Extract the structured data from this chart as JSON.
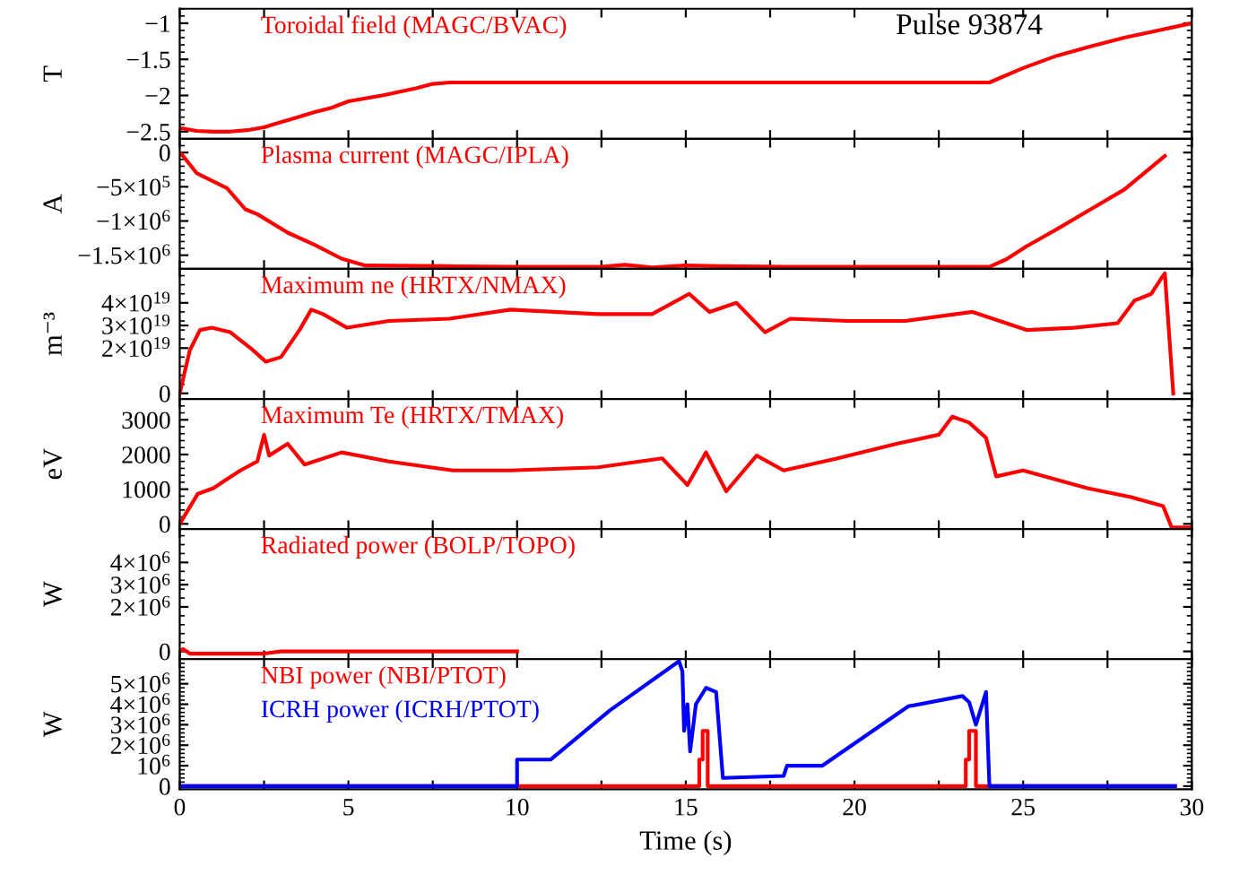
{
  "chart_data": [
    {
      "type": "line",
      "ylabel": "T",
      "annotations": [
        "Pulse 93874"
      ],
      "xlim": [
        0,
        30
      ],
      "xticks": [
        {
          "value": 0,
          "label": null
        },
        {
          "value": 2.5,
          "label": null
        },
        {
          "value": 5,
          "label": null
        },
        {
          "value": 7.5,
          "label": null
        },
        {
          "value": 10,
          "label": null
        },
        {
          "value": 12.5,
          "label": null
        },
        {
          "value": 15,
          "label": null
        },
        {
          "value": 17.5,
          "label": null
        },
        {
          "value": 20,
          "label": null
        },
        {
          "value": 22.5,
          "label": null
        },
        {
          "value": 25,
          "label": null
        },
        {
          "value": 27.5,
          "label": null
        },
        {
          "value": 30,
          "label": null
        }
      ],
      "ylim": [
        -2.6,
        -0.8
      ],
      "yticks": [
        {
          "value": -2.5,
          "label": "−2.5"
        },
        {
          "value": -2,
          "label": "−2"
        },
        {
          "value": -1.5,
          "label": "−1.5"
        },
        {
          "value": -1,
          "label": "−1"
        }
      ],
      "tick_labels": "y",
      "series": [
        {
          "name": "Toroidal field (MAGC/BVAC)",
          "color": "#ff0000",
          "x": [
            0,
            0.5,
            1,
            1.5,
            2,
            2.5,
            3,
            3.5,
            4,
            4.5,
            5,
            6,
            7,
            7.5,
            8,
            10,
            15,
            20,
            24,
            25,
            26,
            27,
            28,
            29,
            30
          ],
          "values": [
            -2.45,
            -2.49,
            -2.5,
            -2.5,
            -2.48,
            -2.44,
            -2.37,
            -2.3,
            -2.23,
            -2.17,
            -2.08,
            -2.0,
            -1.9,
            -1.84,
            -1.82,
            -1.82,
            -1.82,
            -1.82,
            -1.82,
            -1.62,
            -1.45,
            -1.32,
            -1.2,
            -1.1,
            -1.0
          ]
        }
      ]
    },
    {
      "type": "line",
      "ylabel": "A",
      "xlim": [
        0,
        30
      ],
      "xticks": [
        {
          "value": 0,
          "label": null
        },
        {
          "value": 2.5,
          "label": null
        },
        {
          "value": 5,
          "label": null
        },
        {
          "value": 7.5,
          "label": null
        },
        {
          "value": 10,
          "label": null
        },
        {
          "value": 12.5,
          "label": null
        },
        {
          "value": 15,
          "label": null
        },
        {
          "value": 17.5,
          "label": null
        },
        {
          "value": 20,
          "label": null
        },
        {
          "value": 22.5,
          "label": null
        },
        {
          "value": 25,
          "label": null
        },
        {
          "value": 27.5,
          "label": null
        },
        {
          "value": 30,
          "label": null
        }
      ],
      "ylim": [
        -1700000,
        200000
      ],
      "yticks": [
        {
          "value": -1500000,
          "label": "−1.5×10$^{6}$"
        },
        {
          "value": -1000000,
          "label": "−1×10$^{6}$"
        },
        {
          "value": -500000,
          "label": "−5×10$^{5}$"
        },
        0
      ],
      "tick_labels": "y",
      "series": [
        {
          "name": "Plasma current (MAGC/IPLA)",
          "color": "#ff0000",
          "x": [
            0,
            0.1,
            0.5,
            1.4,
            1.95,
            2.3,
            3.2,
            4.0,
            4.8,
            5.5,
            8,
            10,
            12.5,
            13.2,
            14,
            15,
            16,
            18,
            20,
            24,
            24.5,
            25.1,
            26,
            27,
            28,
            29.2
          ],
          "values": [
            0,
            -50000,
            -300000,
            -520000,
            -830000,
            -900000,
            -1170000,
            -1350000,
            -1550000,
            -1650000,
            -1660000,
            -1670000,
            -1670000,
            -1640000,
            -1680000,
            -1650000,
            -1660000,
            -1670000,
            -1670000,
            -1670000,
            -1560000,
            -1370000,
            -1120000,
            -830000,
            -540000,
            -50000
          ]
        }
      ]
    },
    {
      "type": "line",
      "ylabel": "m⁻³",
      "xlim": [
        0,
        30
      ],
      "xticks": [
        {
          "value": 0,
          "label": null
        },
        {
          "value": 2.5,
          "label": null
        },
        {
          "value": 5,
          "label": null
        },
        {
          "value": 7.5,
          "label": null
        },
        {
          "value": 10,
          "label": null
        },
        {
          "value": 12.5,
          "label": null
        },
        {
          "value": 15,
          "label": null
        },
        {
          "value": 17.5,
          "label": null
        },
        {
          "value": 20,
          "label": null
        },
        {
          "value": 22.5,
          "label": null
        },
        {
          "value": 25,
          "label": null
        },
        {
          "value": 27.5,
          "label": null
        },
        {
          "value": 30,
          "label": null
        }
      ],
      "ylim": [
        -2.5e+18,
        5.5e+19
      ],
      "yticks": [
        0,
        {
          "value": 2e+19,
          "label": "2×10$^{19}$"
        },
        {
          "value": 3e+19,
          "label": "3×10$^{19}$"
        },
        {
          "value": 4e+19,
          "label": "4×10$^{19}$"
        }
      ],
      "tick_labels": "y",
      "series": [
        {
          "name": "Maximum ne (HRTX/NMAX)",
          "color": "#ff0000",
          "x": [
            0,
            0.3,
            0.6,
            0.95,
            1.5,
            2.1,
            2.55,
            3.0,
            3.55,
            3.9,
            4.25,
            4.96,
            6.2,
            8.0,
            9.8,
            12.4,
            14.0,
            15.1,
            15.7,
            16.5,
            17.35,
            18.1,
            19.8,
            21.5,
            23.5,
            25.1,
            26.5,
            27.8,
            28.3,
            28.8,
            29.1,
            29.2,
            29.45
          ],
          "values": [
            0,
            1.9e+19,
            2.8e+19,
            2.9e+19,
            2.7e+19,
            2e+19,
            1.4e+19,
            1.6e+19,
            2.8e+19,
            3.7e+19,
            3.5e+19,
            2.9e+19,
            3.2e+19,
            3.3e+19,
            3.7e+19,
            3.5e+19,
            3.5e+19,
            4.4e+19,
            3.6e+19,
            4e+19,
            2.7e+19,
            3.3e+19,
            3.2e+19,
            3.2e+19,
            3.6e+19,
            2.8e+19,
            2.9e+19,
            3.1e+19,
            4.1e+19,
            4.4e+19,
            5.1e+19,
            5.3e+19,
            0
          ]
        }
      ]
    },
    {
      "type": "line",
      "ylabel": "eV",
      "xlim": [
        0,
        30
      ],
      "xticks": [
        {
          "value": 0,
          "label": null
        },
        {
          "value": 2.5,
          "label": null
        },
        {
          "value": 5,
          "label": null
        },
        {
          "value": 7.5,
          "label": null
        },
        {
          "value": 10,
          "label": null
        },
        {
          "value": 12.5,
          "label": null
        },
        {
          "value": 15,
          "label": null
        },
        {
          "value": 17.5,
          "label": null
        },
        {
          "value": 20,
          "label": null
        },
        {
          "value": 22.5,
          "label": null
        },
        {
          "value": 25,
          "label": null
        },
        {
          "value": 27.5,
          "label": null
        },
        {
          "value": 30,
          "label": null
        }
      ],
      "ylim": [
        -150,
        3600
      ],
      "yticks": [
        0,
        1000,
        2000,
        3000
      ],
      "tick_labels": "y",
      "series": [
        {
          "name": "Maximum Te (HRTX/TMAX)",
          "color": "#ff0000",
          "x": [
            0,
            0.53,
            1.0,
            1.4,
            1.8,
            2.3,
            2.5,
            2.65,
            3.2,
            3.7,
            4.8,
            6.2,
            8.1,
            9.8,
            12.4,
            14.3,
            15.05,
            15.6,
            16.2,
            17.1,
            17.9,
            19.5,
            21.25,
            22.5,
            22.9,
            23.4,
            23.9,
            24.2,
            25.0,
            26.9,
            28.2,
            29.15,
            29.4,
            30
          ],
          "values": [
            0,
            860,
            1030,
            1290,
            1540,
            1800,
            2570,
            1970,
            2310,
            1710,
            2060,
            1800,
            1540,
            1540,
            1630,
            1890,
            1120,
            2060,
            940,
            1970,
            1540,
            1890,
            2310,
            2570,
            3090,
            2920,
            2480,
            1370,
            1540,
            1030,
            770,
            510,
            -100,
            -100
          ]
        }
      ]
    },
    {
      "type": "line",
      "ylabel": "W",
      "xlim": [
        0,
        30
      ],
      "xticks": [
        {
          "value": 0,
          "label": null
        },
        {
          "value": 2.5,
          "label": null
        },
        {
          "value": 5,
          "label": null
        },
        {
          "value": 7.5,
          "label": null
        },
        {
          "value": 10,
          "label": null
        },
        {
          "value": 12.5,
          "label": null
        },
        {
          "value": 15,
          "label": null
        },
        {
          "value": 17.5,
          "label": null
        },
        {
          "value": 20,
          "label": null
        },
        {
          "value": 22.5,
          "label": null
        },
        {
          "value": 25,
          "label": null
        },
        {
          "value": 27.5,
          "label": null
        },
        {
          "value": 30,
          "label": null
        }
      ],
      "ylim": [
        -350000,
        5500000
      ],
      "yticks": [
        0,
        {
          "value": 2000000,
          "label": "2×10$^{6}$"
        },
        {
          "value": 3000000,
          "label": "3×10$^{6}$"
        },
        {
          "value": 4000000,
          "label": "4×10$^{6}$"
        }
      ],
      "tick_labels": "y",
      "series": [
        {
          "name": "Radiated power (BOLP/TOPO)",
          "color": "#ff0000",
          "x": [
            0,
            0.1,
            0.3,
            1.0,
            2.5,
            3.0,
            5,
            7.5,
            10
          ],
          "values": [
            0,
            100000,
            -100000,
            -100000,
            -100000,
            0,
            0,
            0,
            0
          ]
        }
      ]
    },
    {
      "type": "line",
      "ylabel": "W",
      "xlabel": "Time (s)",
      "xlim": [
        0,
        30
      ],
      "xticks": [
        0,
        {
          "value": 2.5,
          "label": null
        },
        5,
        {
          "value": 7.5,
          "label": null
        },
        10,
        {
          "value": 12.5,
          "label": null
        },
        15,
        {
          "value": 17.5,
          "label": null
        },
        20,
        {
          "value": 22.5,
          "label": null
        },
        25,
        {
          "value": 27.5,
          "label": null
        },
        30
      ],
      "ylim": [
        -150000,
        6200000
      ],
      "yticks": [
        0,
        {
          "value": 1000000,
          "label": "10$^{6}$"
        },
        {
          "value": 2000000,
          "label": "2×10$^{6}$"
        },
        {
          "value": 3000000,
          "label": "3×10$^{6}$"
        },
        {
          "value": 4000000,
          "label": "4×10$^{6}$"
        },
        {
          "value": 5000000,
          "label": "5×10$^{6}$"
        }
      ],
      "series": [
        {
          "name": "NBI power (NBI/PTOT)",
          "color": "#ff0000",
          "x": [
            0,
            15.4,
            15.4,
            15.5,
            15.5,
            15.65,
            15.65,
            23.3,
            23.3,
            23.4,
            23.4,
            23.6,
            23.6,
            29.5
          ],
          "values": [
            0,
            0,
            1300000,
            1300000,
            2700000,
            2700000,
            0,
            0,
            1300000,
            1300000,
            2700000,
            2700000,
            0,
            0
          ]
        },
        {
          "name": "ICRH power (ICRH/PTOT)",
          "color": "#0000ff",
          "x": [
            0,
            10,
            10,
            11,
            12.75,
            14.8,
            14.9,
            14.95,
            15.05,
            15.13,
            15.3,
            15.6,
            15.9,
            16.1,
            17.9,
            18.0,
            19.05,
            21.6,
            23.2,
            23.4,
            23.6,
            23.9,
            24.0,
            29.5
          ],
          "values": [
            0,
            0,
            1300000,
            1300000,
            3700000,
            6100000,
            5600000,
            2700000,
            4000000,
            1700000,
            4000000,
            4800000,
            4600000,
            400000,
            500000,
            1000000,
            1000000,
            3900000,
            4400000,
            4100000,
            3000000,
            4600000,
            0,
            0
          ]
        }
      ]
    }
  ]
}
